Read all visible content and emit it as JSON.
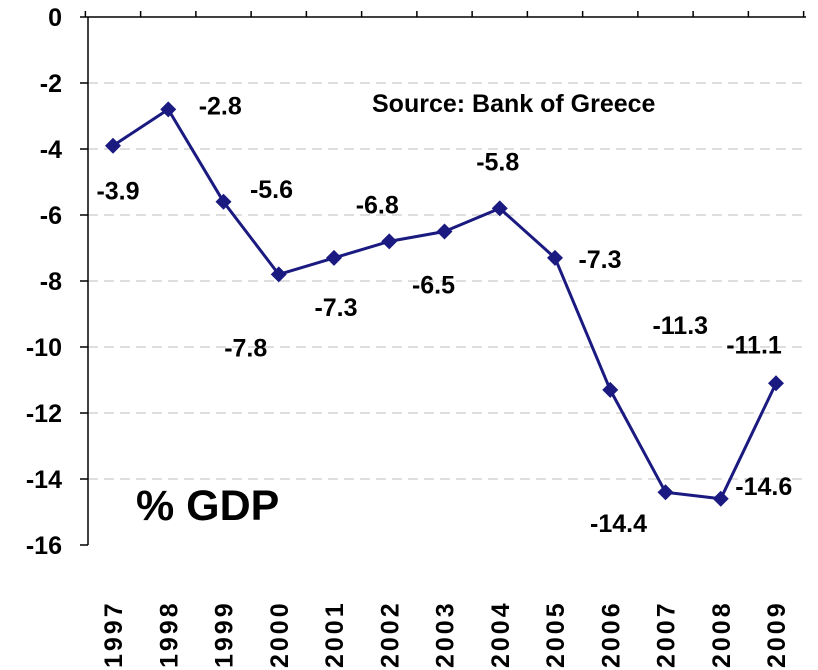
{
  "chart_data": {
    "type": "line",
    "categories": [
      "1997",
      "1998",
      "1999",
      "2000",
      "2001",
      "2002",
      "2003",
      "2004",
      "2005",
      "2006",
      "2007",
      "2008",
      "2009"
    ],
    "series": [
      {
        "values": [
          -3.9,
          -2.8,
          -5.6,
          -7.8,
          -7.3,
          -6.8,
          -6.5,
          -5.8,
          -7.3,
          -11.3,
          -14.4,
          -14.6,
          -11.1
        ]
      }
    ],
    "data_labels": [
      "-3.9",
      "-2.8",
      "-5.6",
      "-7.8",
      "-7.3",
      "-6.8",
      "-6.5",
      "-5.8",
      "-7.3",
      "-11.3",
      "-14.4",
      "-14.6",
      "-11.1"
    ],
    "yticks": [
      "0",
      "-2",
      "-4",
      "-6",
      "-8",
      "-10",
      "-12",
      "-14",
      "-16"
    ],
    "ytick_values": [
      0,
      -2,
      -4,
      -6,
      -8,
      -10,
      -12,
      -14,
      -16
    ],
    "ylim": [
      -16,
      0
    ],
    "grid": true,
    "annotations": {
      "source": "Source: Bank of Greece",
      "unit": "% GDP"
    },
    "colors": {
      "line": "#1a1a80",
      "marker": "#1a1a80",
      "grid": "#bdbdbd"
    }
  }
}
